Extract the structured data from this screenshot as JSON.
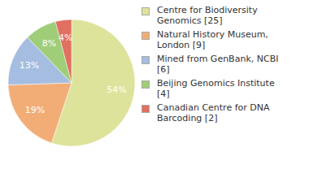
{
  "chart_data": {
    "type": "pie",
    "categories": [
      "Centre for Biodiversity Genomics [25]",
      "Natural History Museum, London [9]",
      "Mined from GenBank, NCBI [6]",
      "Beijing Genomics Institute [4]",
      "Canadian Centre for DNA Barcoding [2]"
    ],
    "values": [
      54,
      19,
      13,
      8,
      4
    ],
    "value_labels": [
      "54%",
      "19%",
      "13%",
      "8%",
      "4%"
    ],
    "colors": [
      "#dde39a",
      "#f2ad77",
      "#a5bde0",
      "#9fcd78",
      "#e07060"
    ],
    "data_labels": true,
    "legend": "right"
  }
}
